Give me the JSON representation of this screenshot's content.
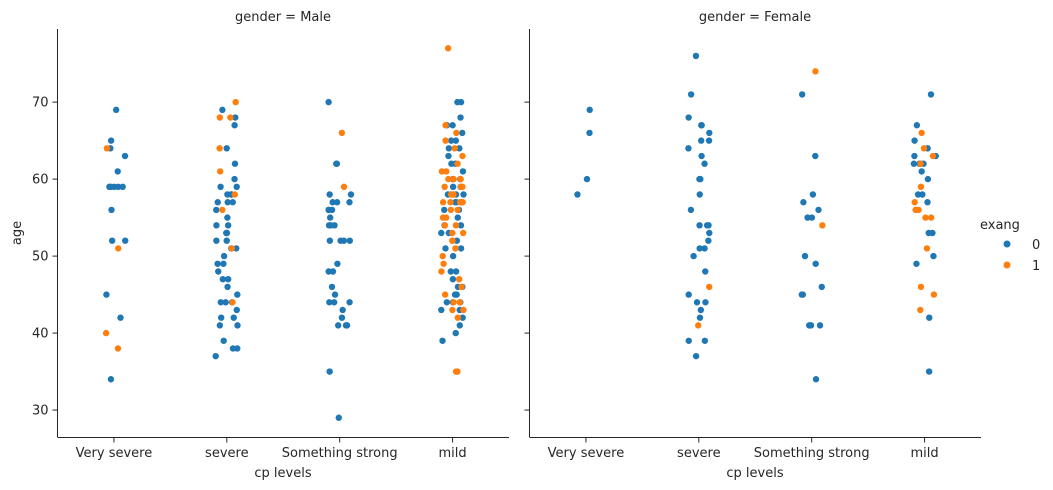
{
  "chart_data": {
    "type": "scatter",
    "subtype": "strip",
    "y_label": "age",
    "ylim": [
      26.5,
      79.5
    ],
    "y_ticks": [
      30,
      40,
      50,
      60,
      70
    ],
    "categories": [
      "Very severe",
      "severe",
      "Something strong",
      "mild"
    ],
    "legend": {
      "title": "exang",
      "placement": "right",
      "entries": [
        {
          "label": "0",
          "color": "#1f77b4"
        },
        {
          "label": "1",
          "color": "#ff7f0e"
        }
      ]
    },
    "panels": [
      {
        "title": "gender = Male",
        "x_label": "cp levels",
        "series": [
          {
            "name": "0",
            "points": {
              "Very severe": [
                69,
                65,
                64,
                63,
                61,
                59,
                59,
                59,
                59,
                59,
                56,
                52,
                52,
                45,
                42,
                34
              ],
              "severe": [
                69,
                68,
                67,
                64,
                62,
                60,
                59,
                59,
                58,
                58,
                58,
                57,
                57,
                57,
                56,
                55,
                54,
                54,
                53,
                53,
                52,
                52,
                51,
                51,
                50,
                49,
                49,
                48,
                47,
                47,
                46,
                45,
                44,
                44,
                44,
                43,
                42,
                42,
                41,
                41,
                39,
                38,
                38,
                37
              ],
              "Something strong": [
                70,
                62,
                62,
                58,
                58,
                57,
                57,
                57,
                56,
                56,
                56,
                55,
                54,
                54,
                54,
                52,
                52,
                52,
                52,
                49,
                48,
                48,
                46,
                45,
                44,
                44,
                44,
                43,
                42,
                41,
                41,
                41,
                35,
                29
              ],
              "mild": [
                70,
                70,
                68,
                67,
                67,
                66,
                65,
                65,
                64,
                64,
                63,
                62,
                62,
                61,
                60,
                60,
                59,
                59,
                58,
                58,
                58,
                57,
                57,
                57,
                56,
                56,
                55,
                54,
                54,
                53,
                53,
                52,
                51,
                51,
                50,
                48,
                48,
                47,
                46,
                46,
                45,
                45,
                44,
                44,
                44,
                43,
                43,
                42,
                41,
                40,
                39
              ]
            }
          },
          {
            "name": "1",
            "points": {
              "Very severe": [
                64,
                51,
                40,
                38
              ],
              "severe": [
                70,
                68,
                68,
                64,
                61,
                58,
                56,
                51,
                44
              ],
              "Something strong": [
                66,
                59
              ],
              "mild": [
                77,
                67,
                66,
                65,
                64,
                63,
                62,
                61,
                61,
                60,
                60,
                60,
                59,
                59,
                59,
                58,
                58,
                58,
                57,
                57,
                57,
                57,
                56,
                56,
                55,
                55,
                54,
                54,
                53,
                53,
                52,
                52,
                51,
                50,
                49,
                48,
                47,
                46,
                45,
                44,
                44,
                43,
                43,
                42,
                35,
                35
              ]
            }
          }
        ]
      },
      {
        "title": "gender = Female",
        "x_label": "cp levels",
        "series": [
          {
            "name": "0",
            "points": {
              "Very severe": [
                69,
                66,
                60,
                58
              ],
              "severe": [
                76,
                71,
                68,
                67,
                67,
                66,
                65,
                65,
                64,
                63,
                62,
                60,
                60,
                58,
                56,
                54,
                54,
                54,
                53,
                52,
                51,
                51,
                50,
                48,
                45,
                44,
                44,
                43,
                42,
                39,
                39,
                37
              ],
              "Something strong": [
                71,
                63,
                58,
                57,
                56,
                55,
                55,
                50,
                49,
                46,
                45,
                45,
                41,
                41,
                41,
                34
              ],
              "mild": [
                71,
                67,
                65,
                64,
                63,
                63,
                62,
                62,
                62,
                62,
                61,
                60,
                58,
                58,
                57,
                53,
                53,
                50,
                49,
                42,
                35
              ]
            }
          },
          {
            "name": "1",
            "points": {
              "Very severe": [],
              "severe": [
                46,
                41
              ],
              "Something strong": [
                74,
                54
              ],
              "mild": [
                66,
                64,
                63,
                62,
                59,
                57,
                56,
                56,
                55,
                55,
                51,
                46,
                45,
                43
              ]
            }
          }
        ]
      }
    ]
  }
}
